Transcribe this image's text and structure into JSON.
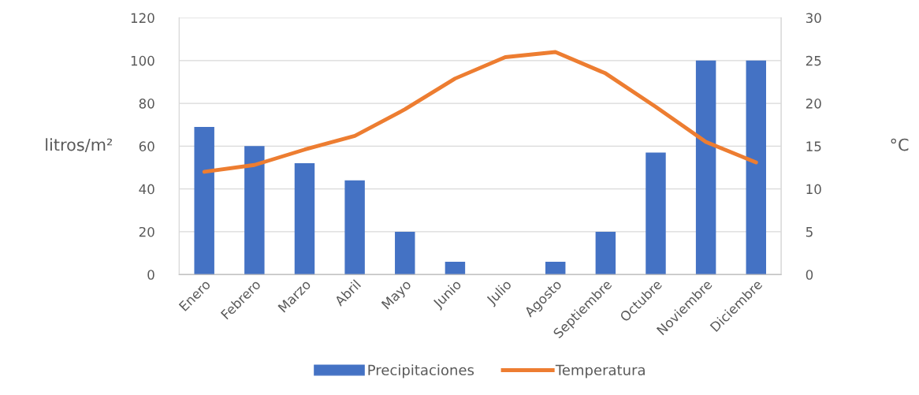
{
  "chart_data": {
    "type": "bar",
    "categories": [
      "Enero",
      "Febrero",
      "Marzo",
      "Abril",
      "Mayo",
      "Junio",
      "Julio",
      "Agosto",
      "Septiembre",
      "Octubre",
      "Noviembre",
      "Diciembre"
    ],
    "ylabel": "litros/m²",
    "y2label": "°C",
    "series": [
      {
        "name": "Precipitaciones",
        "color": "#4472c4",
        "values": [
          69,
          60,
          52,
          44,
          20,
          6,
          0,
          6,
          20,
          57,
          100,
          100
        ]
      },
      {
        "name": "Temperatura",
        "type": "line",
        "axis": "y2",
        "color": "#ed7d31",
        "values": [
          12.0,
          12.8,
          14.6,
          16.2,
          19.3,
          22.9,
          25.4,
          26.0,
          23.5,
          19.6,
          15.5,
          13.1
        ]
      }
    ],
    "ylim": [
      0,
      120
    ],
    "yticks": [
      0,
      20,
      40,
      60,
      80,
      100,
      120
    ],
    "y2lim": [
      0,
      30
    ],
    "y2ticks": [
      0,
      5,
      10,
      15,
      20,
      25,
      30
    ],
    "grid": "y",
    "legend": "bottom",
    "marker": "none",
    "line_style": "solid"
  }
}
